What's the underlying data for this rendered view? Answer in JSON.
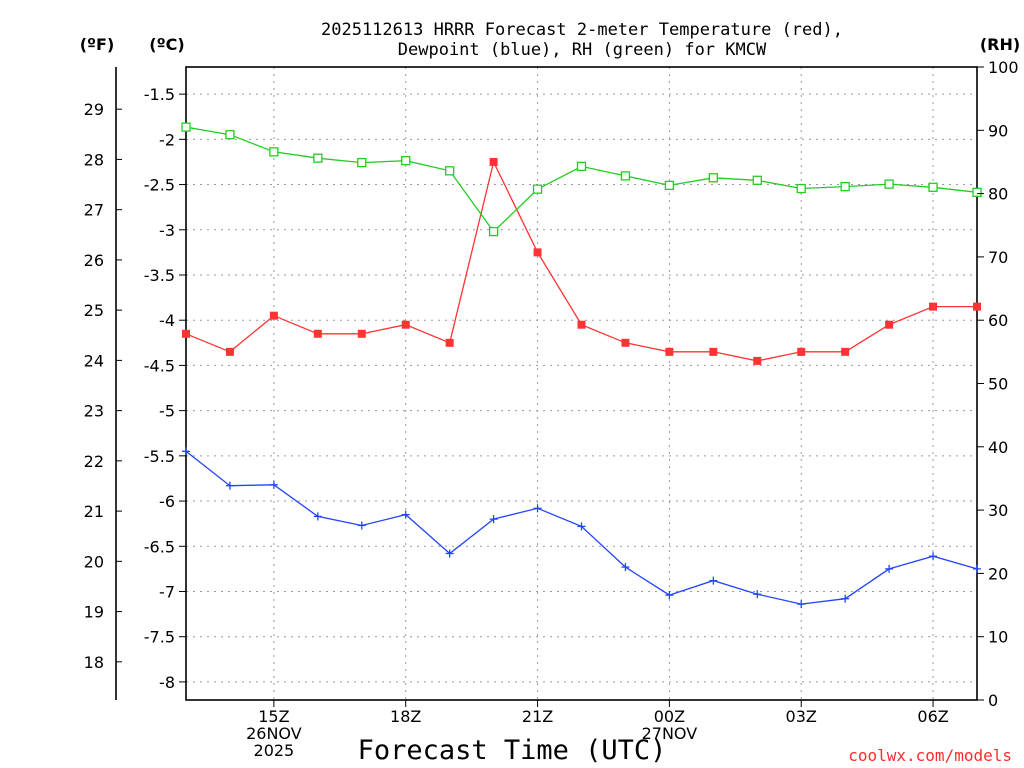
{
  "chart_data": {
    "type": "line",
    "title_line1": "2025112613 HRRR Forecast 2-meter Temperature (red),",
    "title_line2": "Dewpoint (blue), RH (green) for KMCW",
    "xlabel": "Forecast Time (UTC)",
    "credit": "coolwx.com/models",
    "units": {
      "left_f": "(ºF)",
      "left_c": "(ºC)",
      "right": "(RH)"
    },
    "x": [
      "13Z",
      "14Z",
      "15Z",
      "16Z",
      "17Z",
      "18Z",
      "19Z",
      "20Z",
      "21Z",
      "22Z",
      "23Z",
      "00Z",
      "01Z",
      "02Z",
      "03Z",
      "04Z",
      "05Z",
      "06Z",
      "07Z"
    ],
    "x_ticks": [
      {
        "index": 2,
        "labels": [
          "15Z",
          "26NOV",
          "2025"
        ]
      },
      {
        "index": 5,
        "labels": [
          "18Z"
        ]
      },
      {
        "index": 8,
        "labels": [
          "21Z"
        ]
      },
      {
        "index": 11,
        "labels": [
          "00Z",
          "27NOV"
        ]
      },
      {
        "index": 14,
        "labels": [
          "03Z"
        ]
      },
      {
        "index": 17,
        "labels": [
          "06Z"
        ]
      }
    ],
    "ylim_c": [
      -8.2,
      -1.2
    ],
    "celsius_ticks": [
      "-1.5",
      "-2",
      "-2.5",
      "-3",
      "-3.5",
      "-4",
      "-4.5",
      "-5",
      "-5.5",
      "-6",
      "-6.5",
      "-7",
      "-7.5",
      "-8"
    ],
    "fahrenheit_ticks": [
      "29",
      "28",
      "27",
      "26",
      "25",
      "24",
      "23",
      "22",
      "21",
      "20",
      "19",
      "18"
    ],
    "ylim_rh": [
      0,
      100
    ],
    "rh_ticks": [
      "0",
      "10",
      "20",
      "30",
      "40",
      "50",
      "60",
      "70",
      "80",
      "90",
      "100"
    ],
    "series": [
      {
        "name": "2-meter Temperature",
        "axis": "celsius",
        "color": "#ff3333",
        "marker": "filled-square",
        "values": [
          -4.15,
          -4.35,
          -3.95,
          -4.15,
          -4.15,
          -4.05,
          -4.25,
          -2.25,
          -3.25,
          -4.05,
          -4.25,
          -4.35,
          -4.35,
          -4.45,
          -4.35,
          -4.35,
          -4.05,
          -3.85,
          -3.85
        ]
      },
      {
        "name": "Dewpoint",
        "axis": "celsius",
        "color": "#2244ff",
        "marker": "plus",
        "values": [
          -5.45,
          -5.83,
          -5.82,
          -6.17,
          -6.27,
          -6.15,
          -6.58,
          -6.2,
          -6.08,
          -6.28,
          -6.73,
          -7.04,
          -6.88,
          -7.03,
          -7.14,
          -7.08,
          -6.75,
          -6.61,
          -6.75
        ]
      },
      {
        "name": "Relative Humidity",
        "axis": "rh",
        "color": "#22cc22",
        "marker": "open-square",
        "values": [
          90.5,
          89.3,
          86.6,
          85.6,
          84.9,
          85.2,
          83.6,
          74,
          80.7,
          84.3,
          82.8,
          81.3,
          82.5,
          82.1,
          80.8,
          81.1,
          81.5,
          81,
          80.2
        ]
      }
    ]
  }
}
